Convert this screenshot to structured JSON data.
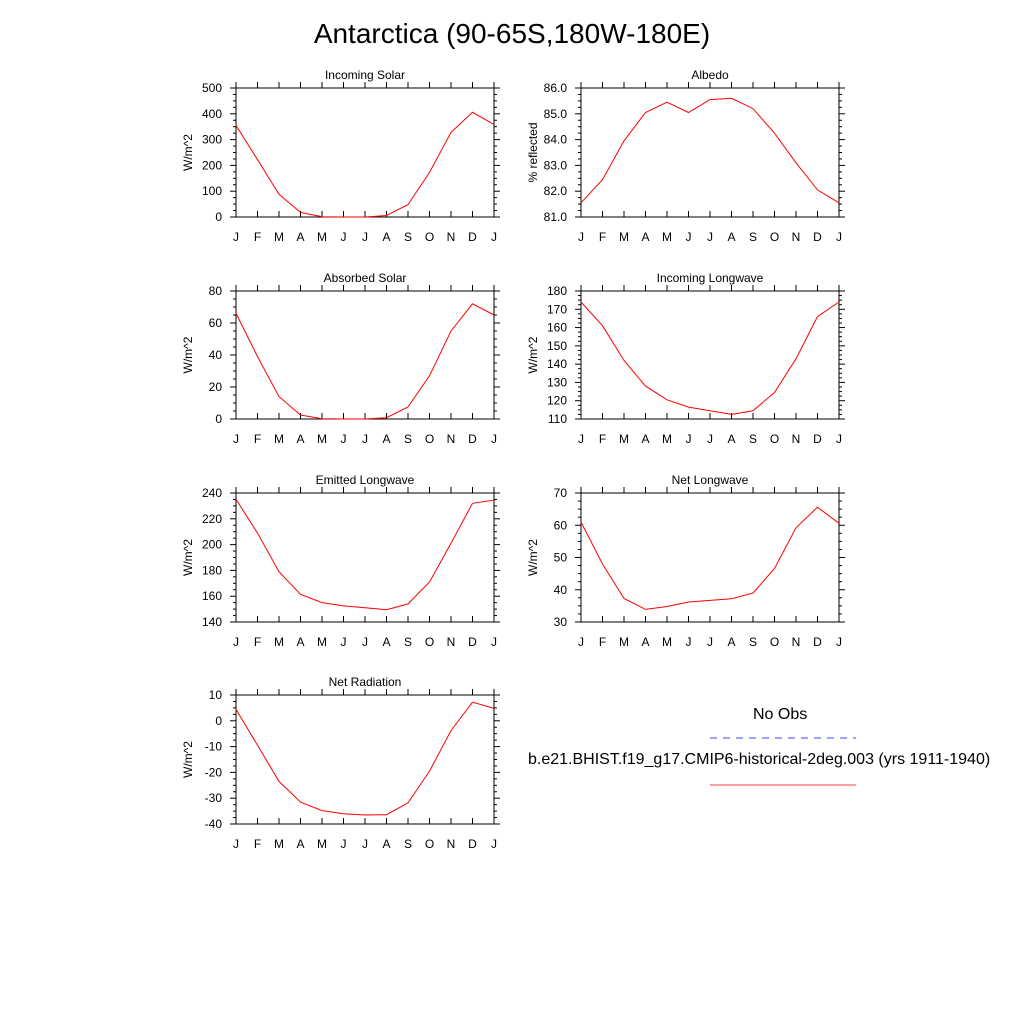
{
  "title": "Antarctica (90-65S,180W-180E)",
  "months": [
    "J",
    "F",
    "M",
    "A",
    "M",
    "J",
    "J",
    "A",
    "S",
    "O",
    "N",
    "D",
    "J"
  ],
  "colors": {
    "model": "#ff0000",
    "obs": "#0000ff",
    "axis": "#000000",
    "background": "#ffffff"
  },
  "legend": {
    "obs_label": "No Obs",
    "obs_style": "dashed",
    "model_label": "b.e21.BHIST.f19_g17.CMIP6-historical-2deg.003 (yrs 1911-1940)",
    "model_style": "solid"
  },
  "chart_data": [
    {
      "type": "line",
      "title": "Incoming Solar",
      "ylabel": "W/m^2",
      "ylim": [
        0,
        500
      ],
      "yticks": [
        0,
        100,
        200,
        300,
        400,
        500
      ],
      "ytick_labels": [
        "0",
        "100",
        "200",
        "300",
        "400",
        "500"
      ],
      "categories": [
        "J",
        "F",
        "M",
        "A",
        "M",
        "J",
        "J",
        "A",
        "S",
        "O",
        "N",
        "D",
        "J"
      ],
      "series": [
        {
          "values": [
            355,
            222,
            88,
            18,
            1,
            0,
            0,
            6,
            48,
            173,
            328,
            406,
            358
          ]
        }
      ]
    },
    {
      "type": "line",
      "title": "Albedo",
      "ylabel": "% reflected",
      "ylim": [
        81.0,
        86.0
      ],
      "yticks": [
        81,
        82,
        83,
        84,
        85,
        86
      ],
      "ytick_labels": [
        "81.0",
        "82.0",
        "83.0",
        "84.0",
        "85.0",
        "86.0"
      ],
      "categories": [
        "J",
        "F",
        "M",
        "A",
        "M",
        "J",
        "J",
        "A",
        "S",
        "O",
        "N",
        "D",
        "J"
      ],
      "series": [
        {
          "values": [
            81.55,
            82.45,
            83.95,
            85.05,
            85.45,
            85.05,
            85.55,
            85.6,
            85.2,
            84.25,
            83.1,
            82.05,
            81.55
          ]
        }
      ]
    },
    {
      "type": "line",
      "title": "Absorbed Solar",
      "ylabel": "W/m^2",
      "ylim": [
        0,
        80
      ],
      "yticks": [
        0,
        20,
        40,
        60,
        80
      ],
      "ytick_labels": [
        "0",
        "20",
        "40",
        "60",
        "80"
      ],
      "categories": [
        "J",
        "F",
        "M",
        "A",
        "M",
        "J",
        "J",
        "A",
        "S",
        "O",
        "N",
        "D",
        "J"
      ],
      "series": [
        {
          "values": [
            66,
            39,
            14,
            2.5,
            0.2,
            0,
            0,
            0.8,
            7.5,
            27,
            55,
            72,
            65
          ]
        }
      ]
    },
    {
      "type": "line",
      "title": "Incoming Longwave",
      "ylabel": "W/m^2",
      "ylim": [
        110,
        180
      ],
      "yticks": [
        110,
        120,
        130,
        140,
        150,
        160,
        170,
        180
      ],
      "ytick_labels": [
        "110",
        "120",
        "130",
        "140",
        "150",
        "160",
        "170",
        "180"
      ],
      "categories": [
        "J",
        "F",
        "M",
        "A",
        "M",
        "J",
        "J",
        "A",
        "S",
        "O",
        "N",
        "D",
        "J"
      ],
      "series": [
        {
          "values": [
            174,
            161,
            142,
            128,
            120.5,
            116.5,
            114.5,
            112.5,
            114.5,
            124.5,
            143,
            166,
            174
          ]
        }
      ]
    },
    {
      "type": "line",
      "title": "Emitted Longwave",
      "ylabel": "W/m^2",
      "ylim": [
        140,
        240
      ],
      "yticks": [
        140,
        160,
        180,
        200,
        220,
        240
      ],
      "ytick_labels": [
        "140",
        "160",
        "180",
        "200",
        "220",
        "240"
      ],
      "categories": [
        "J",
        "F",
        "M",
        "A",
        "M",
        "J",
        "J",
        "A",
        "S",
        "O",
        "N",
        "D",
        "J"
      ],
      "series": [
        {
          "values": [
            235,
            209,
            179,
            161.5,
            155,
            152.5,
            151,
            149.5,
            154,
            171,
            201,
            232,
            234.5
          ]
        }
      ]
    },
    {
      "type": "line",
      "title": "Net Longwave",
      "ylabel": "W/m^2",
      "ylim": [
        30,
        70
      ],
      "yticks": [
        30,
        40,
        50,
        60,
        70
      ],
      "ytick_labels": [
        "30",
        "40",
        "50",
        "60",
        "70"
      ],
      "categories": [
        "J",
        "F",
        "M",
        "A",
        "M",
        "J",
        "J",
        "A",
        "S",
        "O",
        "N",
        "D",
        "J"
      ],
      "series": [
        {
          "values": [
            61,
            48,
            37.3,
            33.9,
            34.8,
            36.2,
            36.7,
            37.2,
            39,
            46.6,
            59.2,
            65.6,
            60.6
          ]
        }
      ]
    },
    {
      "type": "line",
      "title": "Net Radiation",
      "ylabel": "W/m^2",
      "ylim": [
        -40,
        10
      ],
      "yticks": [
        -40,
        -30,
        -20,
        -10,
        0,
        10
      ],
      "ytick_labels": [
        "-40",
        "-30",
        "-20",
        "-10",
        "0",
        "10"
      ],
      "categories": [
        "J",
        "F",
        "M",
        "A",
        "M",
        "J",
        "J",
        "A",
        "S",
        "O",
        "N",
        "D",
        "J"
      ],
      "series": [
        {
          "values": [
            4.5,
            -9.5,
            -23.5,
            -31.5,
            -34.8,
            -36,
            -36.5,
            -36.4,
            -31.8,
            -19.5,
            -3.8,
            7.2,
            4.8
          ]
        }
      ]
    }
  ]
}
